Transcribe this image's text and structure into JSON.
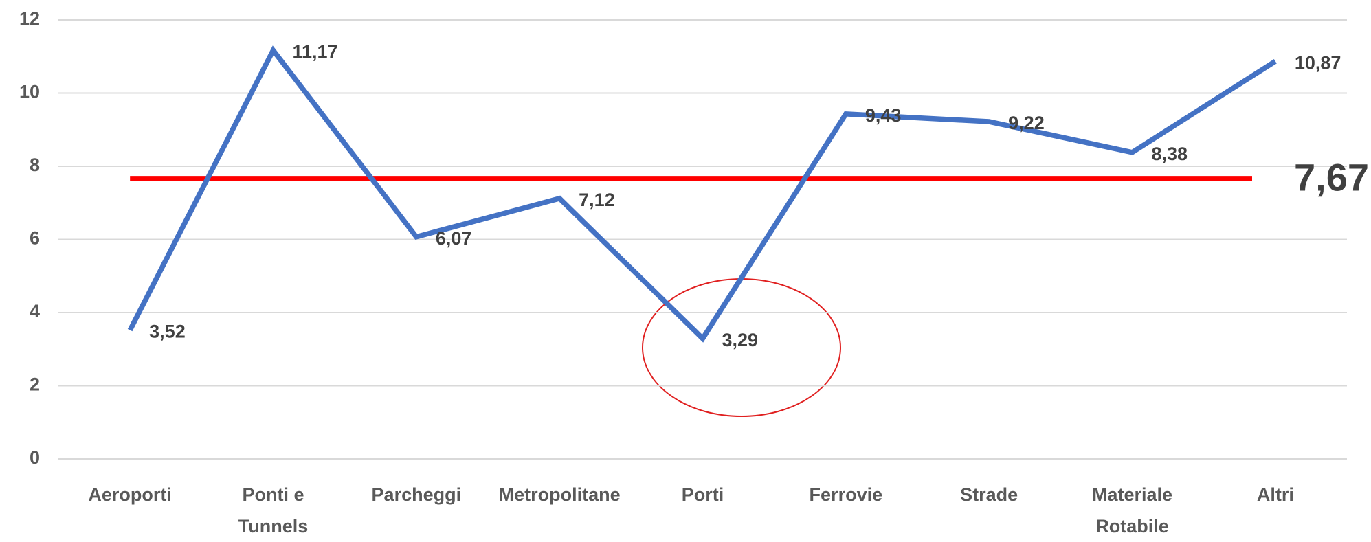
{
  "chart_data": {
    "type": "line",
    "categories": [
      "Aeroporti",
      "Ponti e Tunnels",
      "Parcheggi",
      "Metropolitane",
      "Porti",
      "Ferrovie",
      "Strade",
      "Materiale Rotabile",
      "Altri"
    ],
    "values": [
      3.52,
      11.17,
      6.07,
      7.12,
      3.29,
      9.43,
      9.22,
      8.38,
      10.87
    ],
    "value_labels": [
      "3,52",
      "11,17",
      "6,07",
      "7,12",
      "3,29",
      "9,43",
      "9,22",
      "8,38",
      "10,87"
    ],
    "color": "#4472c4",
    "reference_line": {
      "value": 7.67,
      "label": "7,67",
      "color": "#ff0000"
    },
    "ylim": [
      0,
      12
    ],
    "yticks": [
      0,
      2,
      4,
      6,
      8,
      10,
      12
    ],
    "grid": true
  }
}
